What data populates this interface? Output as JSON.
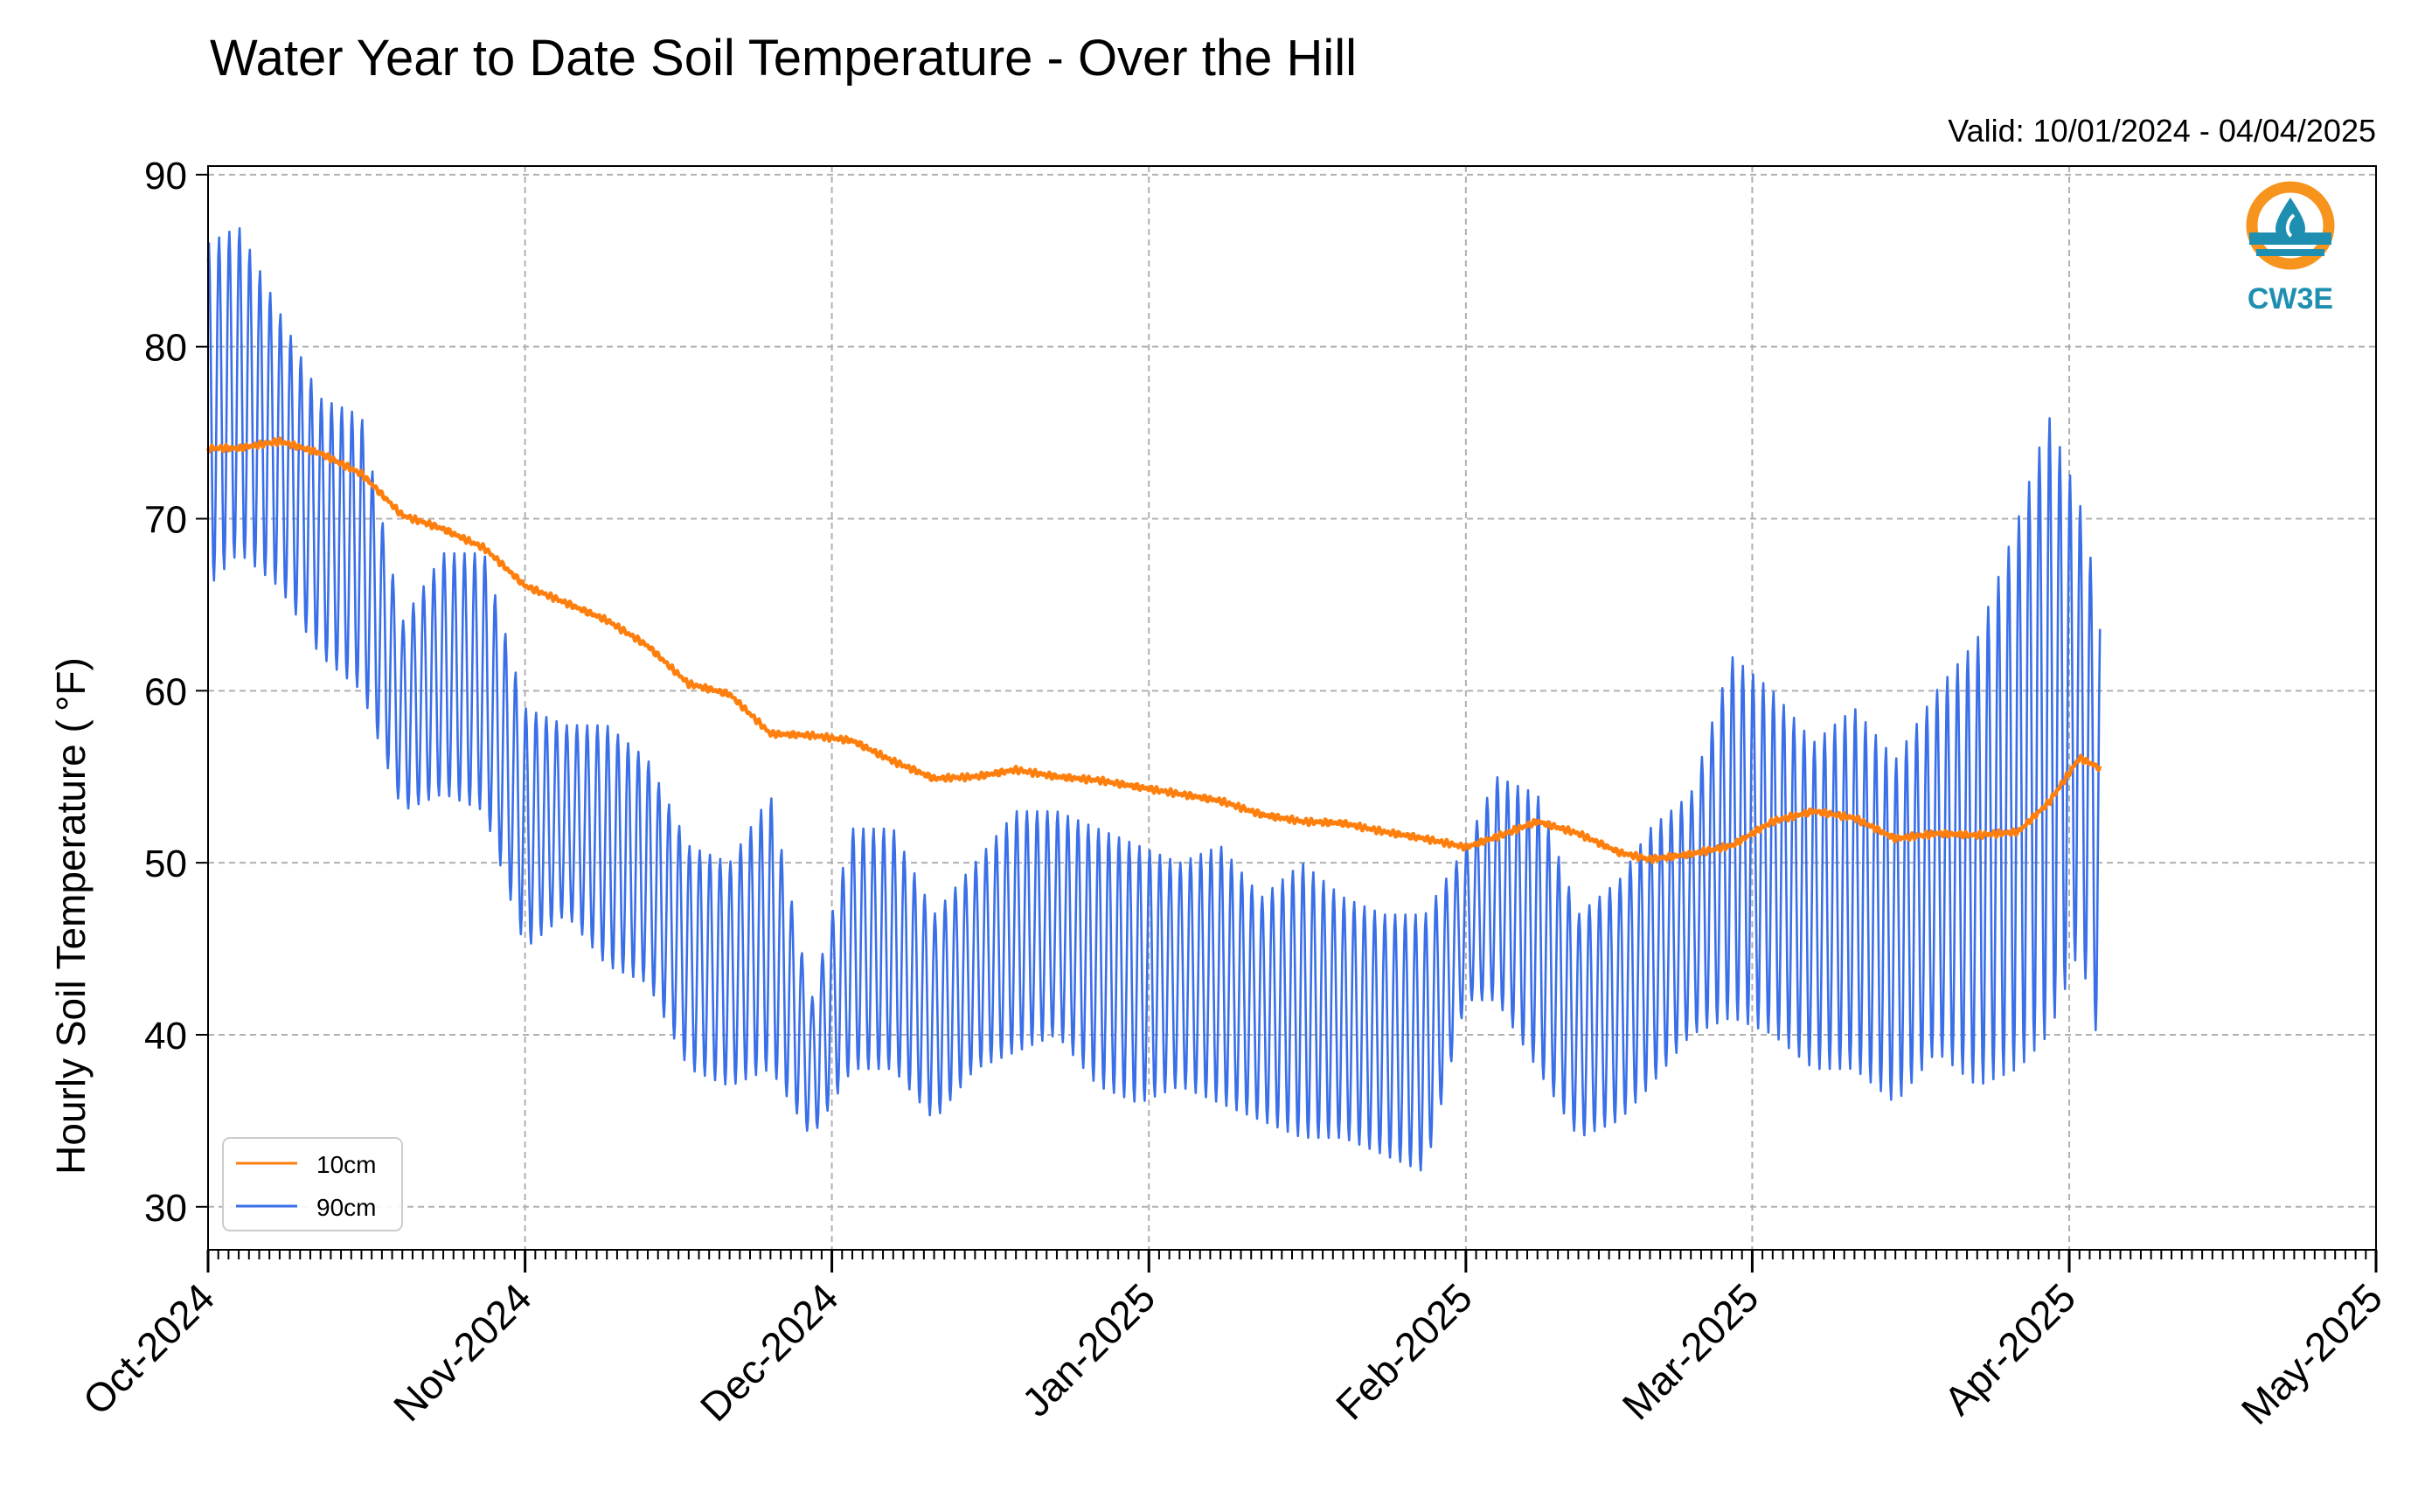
{
  "chart_data": {
    "type": "line",
    "title": "Water Year to Date Soil Temperature - Over the Hill",
    "subtitle": "Valid: 10/01/2024 - 04/04/2025",
    "xlabel": "",
    "ylabel": "Hourly Soil Temperature ( °F)",
    "ylim": [
      27.5,
      90.5
    ],
    "yticks": [
      30,
      40,
      50,
      60,
      70,
      80,
      90
    ],
    "xlim": [
      "2024-10-01",
      "2025-05-01"
    ],
    "xtick_labels": [
      "Oct-2024",
      "Nov-2024",
      "Dec-2024",
      "Jan-2025",
      "Feb-2025",
      "Mar-2025",
      "Apr-2025",
      "May-2025"
    ],
    "grid": true,
    "legend_position": "lower-left",
    "series": [
      {
        "name": "10cm",
        "color": "#ff7f0e",
        "x": [
          "2024-10-01",
          "2024-10-04",
          "2024-10-08",
          "2024-10-12",
          "2024-10-16",
          "2024-10-20",
          "2024-10-24",
          "2024-10-28",
          "2024-11-01",
          "2024-11-05",
          "2024-11-09",
          "2024-11-13",
          "2024-11-17",
          "2024-11-21",
          "2024-11-25",
          "2024-11-29",
          "2024-12-03",
          "2024-12-07",
          "2024-12-11",
          "2024-12-15",
          "2024-12-19",
          "2024-12-23",
          "2024-12-27",
          "2024-12-31",
          "2025-01-04",
          "2025-01-08",
          "2025-01-12",
          "2025-01-16",
          "2025-01-20",
          "2025-01-24",
          "2025-01-28",
          "2025-02-01",
          "2025-02-04",
          "2025-02-08",
          "2025-02-12",
          "2025-02-16",
          "2025-02-19",
          "2025-02-23",
          "2025-02-27",
          "2025-03-03",
          "2025-03-07",
          "2025-03-11",
          "2025-03-15",
          "2025-03-19",
          "2025-03-23",
          "2025-03-27",
          "2025-03-30",
          "2025-04-02",
          "2025-04-04"
        ],
        "values": [
          74.1,
          74.1,
          74.5,
          73.8,
          72.6,
          70.2,
          69.4,
          68.3,
          66.1,
          65.1,
          64.1,
          62.6,
          60.4,
          59.8,
          57.5,
          57.4,
          57.1,
          55.9,
          54.9,
          55.0,
          55.4,
          55.0,
          54.8,
          54.4,
          54.0,
          53.6,
          52.8,
          52.4,
          52.3,
          51.8,
          51.4,
          50.9,
          51.5,
          52.4,
          51.7,
          50.6,
          50.2,
          50.5,
          51.0,
          52.4,
          53.0,
          52.6,
          51.4,
          51.7,
          51.6,
          51.8,
          53.5,
          56.1,
          55.5
        ]
      },
      {
        "name": "90cm",
        "color": "#3a6fe8",
        "x": [
          "2024-10-01",
          "2024-10-04",
          "2024-10-08",
          "2024-10-12",
          "2024-10-16",
          "2024-10-20",
          "2024-10-24",
          "2024-10-28",
          "2024-11-01",
          "2024-11-05",
          "2024-11-09",
          "2024-11-13",
          "2024-11-17",
          "2024-11-21",
          "2024-11-25",
          "2024-11-29",
          "2024-12-03",
          "2024-12-07",
          "2024-12-11",
          "2024-12-15",
          "2024-12-19",
          "2024-12-23",
          "2024-12-27",
          "2024-12-31",
          "2025-01-04",
          "2025-01-08",
          "2025-01-12",
          "2025-01-16",
          "2025-01-20",
          "2025-01-24",
          "2025-01-28",
          "2025-02-01",
          "2025-02-04",
          "2025-02-08",
          "2025-02-12",
          "2025-02-16",
          "2025-02-19",
          "2025-02-23",
          "2025-02-27",
          "2025-03-03",
          "2025-03-07",
          "2025-03-11",
          "2025-03-15",
          "2025-03-19",
          "2025-03-23",
          "2025-03-27",
          "2025-03-30",
          "2025-04-02",
          "2025-04-04"
        ],
        "lows": [
          66,
          68,
          66,
          62,
          60,
          53,
          54,
          53,
          45,
          47,
          44,
          43,
          38,
          37,
          38,
          34,
          38,
          38,
          35,
          38,
          39,
          40,
          37,
          36,
          37,
          36,
          35,
          34,
          34,
          33,
          32,
          42,
          42,
          38,
          34,
          35,
          37,
          40,
          41,
          40,
          38,
          38,
          36,
          39,
          37,
          38,
          40,
          45,
          39
        ],
        "highs": [
          86,
          87,
          82,
          77,
          76,
          64,
          68,
          68,
          59,
          58,
          58,
          56,
          51,
          50,
          54,
          42,
          52,
          52,
          47,
          50,
          53,
          53,
          52,
          51,
          50,
          51,
          48,
          50,
          48,
          47,
          47,
          51,
          55,
          54,
          47,
          49,
          52,
          54,
          62,
          60,
          57,
          59,
          56,
          60,
          63,
          70,
          76,
          71,
          65
        ]
      }
    ],
    "logo": {
      "text": "CW3E",
      "colors": {
        "ring": "#f7941d",
        "teal": "#1e8fb0"
      }
    }
  }
}
